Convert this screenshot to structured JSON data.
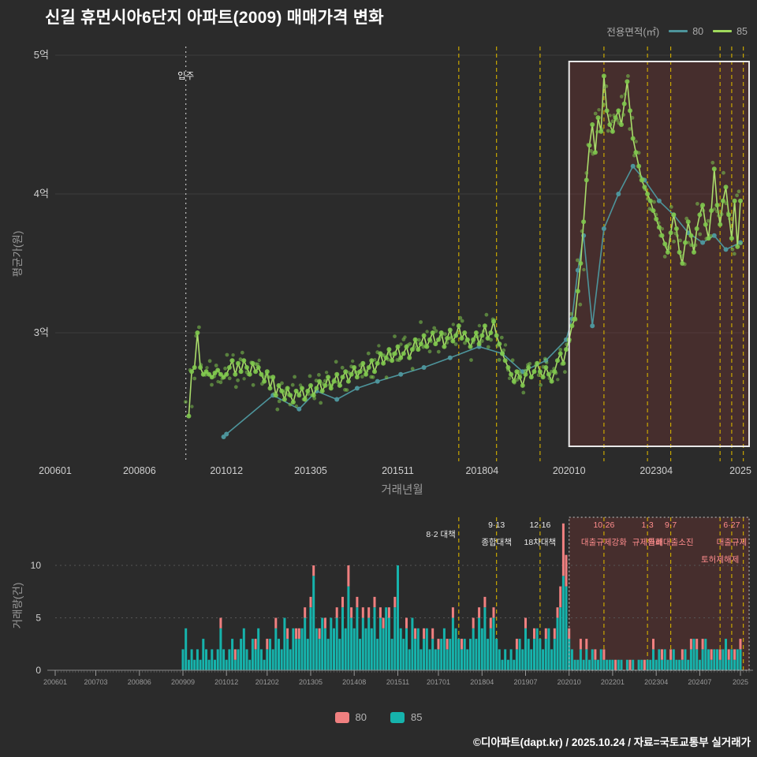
{
  "page": {
    "title": "신길 휴먼시아6단지 아파트(2009) 매매가격 변화",
    "footer_credit": "©디아파트(dapt.kr) / 2025.10.24 / 자료=국토교통부 실거래가"
  },
  "top_legend": {
    "label": "전용면적(㎡)",
    "items": [
      {
        "name": "80",
        "color": "#4d949b"
      },
      {
        "name": "85",
        "color": "#9fd95c"
      }
    ]
  },
  "bottom_legend": {
    "items": [
      {
        "name": "80",
        "color": "#f08080"
      },
      {
        "name": "85",
        "color": "#16b3ac"
      }
    ]
  },
  "colors": {
    "background": "#2b2b2b",
    "policy_dash": "#c9a700",
    "highlight_fill": "rgba(170,60,55,0.22)",
    "highlight_border": "#e9e9e9",
    "move_in_line": "#cccccc",
    "tick_label": "#cfcfcf",
    "minor_tick_label": "#9a9a9a",
    "gridline": "#3c3c3c"
  },
  "chart_data": [
    {
      "type": "line",
      "title": "신길 휴먼시아6단지 아파트(2009) 매매가격 변화",
      "xlabel": "거래년월",
      "ylabel": "평균가(원)",
      "y_unit": "억",
      "ylim": [
        2.1,
        5.05
      ],
      "y_ticks": [
        [
          3,
          "3억"
        ],
        [
          4,
          "4억"
        ],
        [
          5,
          "5억"
        ]
      ],
      "x_ticks": [
        [
          "200601",
          "200601"
        ],
        [
          "200806",
          "200806"
        ],
        [
          "201012",
          "201012"
        ],
        [
          "201305",
          "201305"
        ],
        [
          "201511",
          "201511"
        ],
        [
          "201804",
          "201804"
        ],
        [
          "202010",
          "202010"
        ],
        [
          "202304",
          "202304"
        ],
        [
          "202509",
          "2025"
        ]
      ],
      "move_in": {
        "month": "200910",
        "label": "입주"
      },
      "highlight_start": "202010",
      "policy_months": [
        "201708",
        "201809",
        "201912",
        "202110",
        "202301",
        "202309",
        "202502",
        "202506",
        "202510"
      ],
      "series": [
        {
          "name": "80",
          "color": "#4d949b",
          "points": [
            [
              "201011",
              2.25
            ],
            [
              "201012",
              2.27
            ],
            [
              "201204",
              2.55
            ],
            [
              "201301",
              2.45
            ],
            [
              "201307",
              2.58
            ],
            [
              "201402",
              2.52
            ],
            [
              "201409",
              2.6
            ],
            [
              "201504",
              2.65
            ],
            [
              "201512",
              2.7
            ],
            [
              "201608",
              2.75
            ],
            [
              "201705",
              2.82
            ],
            [
              "201803",
              2.9
            ],
            [
              "201811",
              2.85
            ],
            [
              "201906",
              2.72
            ],
            [
              "202002",
              2.8
            ],
            [
              "202009",
              2.95
            ],
            [
              "202011",
              3.1
            ],
            [
              "202101",
              3.45
            ],
            [
              "202103",
              3.7
            ],
            [
              "202106",
              3.05
            ],
            [
              "202110",
              3.75
            ],
            [
              "202203",
              4.0
            ],
            [
              "202208",
              4.2
            ],
            [
              "202212",
              4.1
            ],
            [
              "202305",
              3.95
            ],
            [
              "202310",
              3.85
            ],
            [
              "202403",
              3.72
            ],
            [
              "202408",
              3.65
            ],
            [
              "202412",
              3.7
            ],
            [
              "202504",
              3.6
            ],
            [
              "202509",
              3.65
            ]
          ]
        },
        {
          "name": "85",
          "color": "#a9dc6a",
          "dot_color": "#7fc94e",
          "start": "200911",
          "values": [
            2.4,
            2.72,
            2.75,
            3.0,
            2.75,
            2.7,
            2.72,
            2.7,
            2.68,
            2.71,
            2.73,
            2.7,
            2.68,
            2.7,
            2.75,
            2.8,
            2.7,
            2.78,
            2.72,
            2.8,
            2.75,
            2.7,
            2.78,
            2.72,
            2.75,
            2.7,
            2.65,
            2.72,
            2.6,
            2.68,
            2.55,
            2.62,
            2.58,
            2.52,
            2.6,
            2.55,
            2.5,
            2.58,
            2.55,
            2.6,
            2.52,
            2.58,
            2.62,
            2.55,
            2.6,
            2.65,
            2.58,
            2.62,
            2.68,
            2.6,
            2.65,
            2.7,
            2.62,
            2.68,
            2.72,
            2.65,
            2.7,
            2.75,
            2.68,
            2.72,
            2.78,
            2.7,
            2.75,
            2.8,
            2.72,
            2.78,
            2.85,
            2.78,
            2.82,
            2.88,
            2.8,
            2.85,
            2.9,
            2.82,
            2.85,
            2.9,
            2.82,
            2.88,
            2.95,
            2.88,
            2.92,
            2.98,
            2.9,
            2.95,
            3.0,
            2.92,
            2.95,
            3.0,
            2.9,
            2.96,
            3.02,
            2.94,
            2.98,
            3.05,
            2.96,
            3.0,
            2.95,
            2.9,
            2.95,
            3.0,
            2.92,
            2.98,
            3.05,
            2.96,
            3.0,
            3.08,
            2.98,
            2.92,
            2.85,
            2.8,
            2.75,
            2.7,
            2.65,
            2.72,
            2.68,
            2.62,
            2.7,
            2.75,
            2.68,
            2.72,
            2.78,
            2.72,
            2.68,
            2.75,
            2.7,
            2.65,
            2.72,
            2.8,
            2.85,
            2.78,
            2.88,
            2.95,
            3.05,
            3.1,
            3.3,
            3.5,
            3.8,
            4.1,
            4.35,
            4.5,
            4.3,
            4.55,
            4.45,
            4.85,
            4.6,
            4.5,
            4.45,
            4.55,
            4.6,
            4.5,
            4.65,
            4.81,
            4.6,
            4.4,
            4.3,
            4.2,
            4.1,
            4.05,
            4.0,
            3.95,
            3.88,
            3.82,
            3.76,
            3.7,
            3.64,
            3.58,
            3.72,
            3.85,
            3.75,
            3.58,
            3.5,
            3.65,
            3.8,
            3.7,
            3.58,
            3.75,
            3.85,
            3.92,
            3.78,
            3.68,
            3.88,
            4.18,
            3.92,
            3.78,
            3.95,
            4.05,
            3.85,
            3.68,
            3.95,
            3.62,
            3.95
          ]
        }
      ]
    },
    {
      "type": "bar",
      "ylabel": "거래량(건)",
      "ylim": [
        0,
        14.5
      ],
      "y_ticks": [
        [
          0,
          "0"
        ],
        [
          5,
          "5"
        ],
        [
          10,
          "10"
        ]
      ],
      "x_ticks": [
        [
          "200601",
          "200601"
        ],
        [
          "200703",
          "200703"
        ],
        [
          "200806",
          "200806"
        ],
        [
          "200909",
          "200909"
        ],
        [
          "201012",
          "201012"
        ],
        [
          "201202",
          "201202"
        ],
        [
          "201305",
          "201305"
        ],
        [
          "201408",
          "201408"
        ],
        [
          "201511",
          "201511"
        ],
        [
          "201701",
          "201701"
        ],
        [
          "201804",
          "201804"
        ],
        [
          "201907",
          "201907"
        ],
        [
          "202010",
          "202010"
        ],
        [
          "202201",
          "202201"
        ],
        [
          "202304",
          "202304"
        ],
        [
          "202407",
          "202407"
        ],
        [
          "202509",
          "2025"
        ]
      ],
      "start": "200909",
      "stacked": true,
      "highlight_start": "202010",
      "series": [
        {
          "name": "80",
          "color": "#f08080",
          "values": [
            0,
            0,
            0,
            0,
            0,
            0,
            0,
            0,
            0,
            0,
            0,
            0,
            0,
            1,
            0,
            0,
            0,
            0,
            1,
            0,
            0,
            0,
            0,
            0,
            0,
            1,
            0,
            0,
            0,
            1,
            0,
            0,
            1,
            0,
            0,
            0,
            1,
            0,
            0,
            1,
            1,
            0,
            1,
            0,
            1,
            1,
            0,
            1,
            0,
            1,
            0,
            0,
            0,
            1,
            0,
            1,
            0,
            2,
            1,
            0,
            1,
            0,
            1,
            0,
            1,
            0,
            1,
            0,
            1,
            1,
            0,
            1,
            0,
            1,
            0,
            0,
            0,
            1,
            0,
            0,
            1,
            0,
            0,
            1,
            0,
            0,
            1,
            0,
            1,
            0,
            0,
            1,
            0,
            1,
            0,
            0,
            1,
            0,
            0,
            0,
            1,
            0,
            1,
            0,
            1,
            0,
            1,
            1,
            0,
            0,
            0,
            0,
            0,
            0,
            0,
            1,
            0,
            0,
            1,
            0,
            0,
            1,
            0,
            0,
            0,
            1,
            0,
            0,
            1,
            1,
            2,
            5,
            3,
            1,
            0,
            0,
            0,
            1,
            0,
            1,
            0,
            0,
            1,
            0,
            0,
            1,
            0,
            0,
            0,
            1,
            0,
            0,
            0,
            0,
            1,
            0,
            0,
            0,
            0,
            1,
            0,
            0,
            1,
            0,
            0,
            1,
            0,
            0,
            1,
            0,
            0,
            0,
            1,
            0,
            0,
            1,
            0,
            1,
            0,
            1,
            0,
            0,
            1,
            0,
            0,
            1,
            0,
            0,
            1,
            0,
            1,
            0,
            1
          ]
        },
        {
          "name": "85",
          "color": "#16b3ac",
          "values": [
            2,
            4,
            1,
            2,
            1,
            2,
            1,
            3,
            2,
            1,
            2,
            1,
            2,
            4,
            2,
            1,
            2,
            3,
            1,
            2,
            3,
            4,
            2,
            1,
            3,
            2,
            4,
            2,
            1,
            2,
            3,
            2,
            4,
            3,
            2,
            5,
            3,
            2,
            4,
            3,
            3,
            4,
            5,
            3,
            6,
            9,
            4,
            3,
            5,
            4,
            3,
            5,
            4,
            5,
            3,
            6,
            4,
            8,
            5,
            4,
            6,
            3,
            5,
            4,
            5,
            4,
            6,
            3,
            5,
            4,
            6,
            5,
            3,
            6,
            10,
            4,
            3,
            4,
            2,
            5,
            3,
            4,
            2,
            3,
            4,
            2,
            3,
            2,
            2,
            3,
            4,
            2,
            3,
            5,
            4,
            3,
            2,
            3,
            2,
            3,
            4,
            3,
            5,
            4,
            6,
            3,
            4,
            5,
            3,
            2,
            1,
            2,
            1,
            2,
            1,
            2,
            3,
            2,
            4,
            3,
            2,
            3,
            4,
            3,
            2,
            3,
            4,
            2,
            3,
            5,
            6,
            9,
            8,
            3,
            2,
            1,
            1,
            2,
            1,
            2,
            1,
            2,
            1,
            1,
            2,
            1,
            1,
            1,
            1,
            0,
            1,
            1,
            0,
            1,
            0,
            1,
            0,
            1,
            1,
            0,
            1,
            1,
            2,
            1,
            2,
            1,
            2,
            1,
            1,
            2,
            1,
            1,
            1,
            2,
            1,
            2,
            3,
            2,
            1,
            2,
            3,
            2,
            1,
            2,
            2,
            1,
            2,
            3,
            1,
            2,
            1,
            2,
            2
          ]
        }
      ],
      "annotations": [
        {
          "month": "201708",
          "lines": [
            "8·2 대책"
          ],
          "color": "#e8e8e8",
          "anchor": "end",
          "dy": 12
        },
        {
          "month": "201809",
          "lines": [
            "9·13",
            "종합대책"
          ],
          "color": "#e8e8e8",
          "dy": 0
        },
        {
          "month": "201912",
          "lines": [
            "12·16",
            "18차대책"
          ],
          "color": "#e8e8e8",
          "dy": 0
        },
        {
          "month": "202110",
          "lines": [
            "10·26",
            "대출규제강화"
          ],
          "color": "#ff8d8d",
          "dy": 0
        },
        {
          "month": "202301",
          "lines": [
            "1·3",
            "규제완화"
          ],
          "color": "#ff8d8d",
          "dy": 0
        },
        {
          "month": "202309",
          "lines": [
            "9·7",
            "특례대출소진"
          ],
          "color": "#ff8d8d",
          "dy": 0
        },
        {
          "month": "202502",
          "lines": [
            "토허제해제"
          ],
          "color": "#ff8d8d",
          "dy": 44
        },
        {
          "month": "202506",
          "lines": [
            "6·27",
            "대출규제"
          ],
          "color": "#ff8d8d",
          "dy": 0
        }
      ]
    }
  ]
}
